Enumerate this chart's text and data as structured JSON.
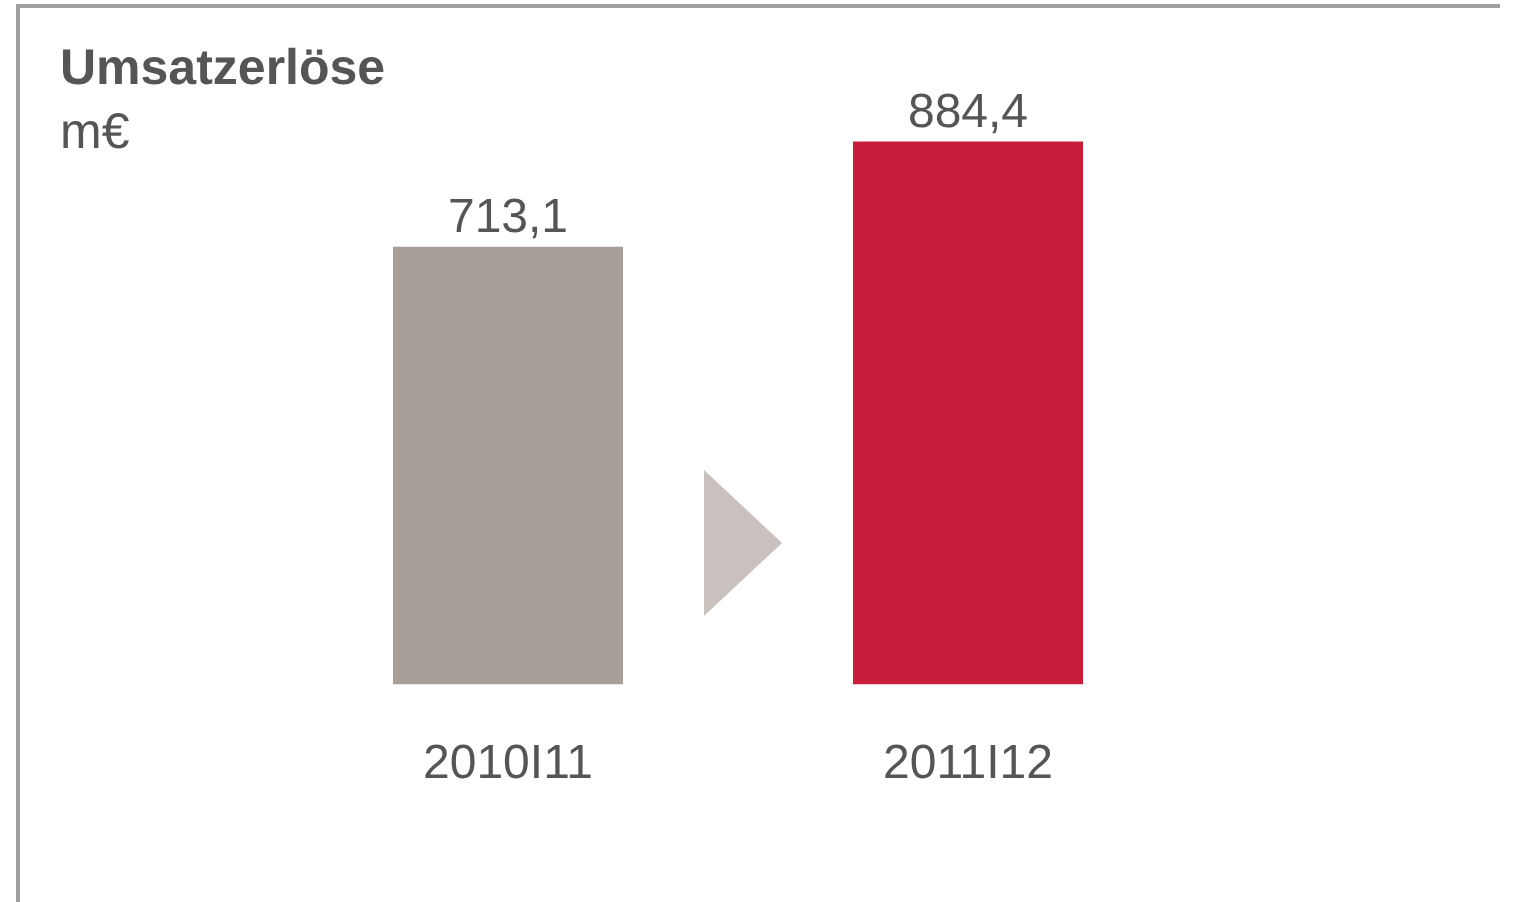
{
  "chart_data": {
    "type": "bar",
    "title": "Umsatzerlöse",
    "subtitle": "m€",
    "categories": [
      "2010I11",
      "2011I12"
    ],
    "values": [
      713.1,
      884.4
    ],
    "colors": [
      "#a89e99",
      "#c81e3c"
    ],
    "value_labels": [
      "713,1",
      "884,4"
    ]
  }
}
